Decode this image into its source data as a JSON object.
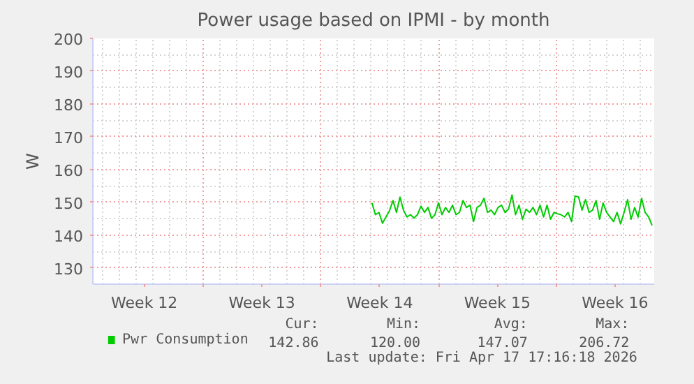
{
  "chart_data": {
    "type": "line",
    "title": "Power usage based on IPMI - by month",
    "ylabel": "W",
    "xlim": [
      "2026-03-16T10:30",
      "2026-04-18T20:00"
    ],
    "xticks": [
      {
        "value": "2026-03-19T12:00",
        "label": "Week 12"
      },
      {
        "value": "2026-03-23",
        "label": null
      },
      {
        "value": "2026-03-26T12:00",
        "label": "Week 13"
      },
      {
        "value": "2026-03-30",
        "label": null
      },
      {
        "value": "2026-04-02T12:00",
        "label": "Week 14"
      },
      {
        "value": "2026-04-06",
        "label": null
      },
      {
        "value": "2026-04-09T12:00",
        "label": "Week 15"
      },
      {
        "value": "2026-04-13",
        "label": null
      },
      {
        "value": "2026-04-16T12:00",
        "label": "Week 16"
      }
    ],
    "ylim": [
      125,
      200
    ],
    "yticks": [
      130,
      140,
      150,
      160,
      170,
      180,
      190,
      200
    ],
    "grid": true,
    "legend": "bottom",
    "x": [
      "2026-04-02T01:00",
      "2026-04-02T06:00",
      "2026-04-02T11:00",
      "2026-04-02T16:00",
      "2026-04-02T21:00",
      "2026-04-03T02:00",
      "2026-04-03T07:00",
      "2026-04-03T12:00",
      "2026-04-03T17:00",
      "2026-04-03T22:00",
      "2026-04-04T03:00",
      "2026-04-04T08:00",
      "2026-04-04T13:00",
      "2026-04-04T18:00",
      "2026-04-04T23:00",
      "2026-04-05T04:00",
      "2026-04-05T09:00",
      "2026-04-05T14:00",
      "2026-04-05T19:00",
      "2026-04-06T00:00",
      "2026-04-06T05:00",
      "2026-04-06T10:00",
      "2026-04-06T15:00",
      "2026-04-06T20:00",
      "2026-04-07T01:00",
      "2026-04-07T06:00",
      "2026-04-07T11:00",
      "2026-04-07T16:00",
      "2026-04-07T21:00",
      "2026-04-08T02:00",
      "2026-04-08T07:00",
      "2026-04-08T12:00",
      "2026-04-08T17:00",
      "2026-04-08T22:00",
      "2026-04-09T03:00",
      "2026-04-09T08:00",
      "2026-04-09T13:00",
      "2026-04-09T18:00",
      "2026-04-09T23:00",
      "2026-04-10T04:00",
      "2026-04-10T09:00",
      "2026-04-10T14:00",
      "2026-04-10T19:00",
      "2026-04-11T00:00",
      "2026-04-11T05:00",
      "2026-04-11T10:00",
      "2026-04-11T15:00",
      "2026-04-11T20:00",
      "2026-04-12T01:00",
      "2026-04-12T06:00",
      "2026-04-12T11:00",
      "2026-04-12T16:00",
      "2026-04-12T21:00",
      "2026-04-13T02:00",
      "2026-04-13T07:00",
      "2026-04-13T12:00",
      "2026-04-13T17:00",
      "2026-04-13T22:00",
      "2026-04-14T03:00",
      "2026-04-14T08:00",
      "2026-04-14T13:00",
      "2026-04-14T18:00",
      "2026-04-14T23:00",
      "2026-04-15T04:00",
      "2026-04-15T09:00",
      "2026-04-15T14:00",
      "2026-04-15T19:00",
      "2026-04-16T00:00",
      "2026-04-16T05:00",
      "2026-04-16T10:00",
      "2026-04-16T15:00",
      "2026-04-16T20:00",
      "2026-04-17T01:00",
      "2026-04-17T06:00",
      "2026-04-17T11:00",
      "2026-04-17T16:00",
      "2026-04-17T21:00",
      "2026-04-18T02:00",
      "2026-04-18T07:00",
      "2026-04-18T12:00",
      "2026-04-18T17:00"
    ],
    "series": [
      {
        "name": "Pwr Consumption",
        "color": "#00cc00",
        "values": [
          149.8,
          146.2,
          146.9,
          143.6,
          145.5,
          147.4,
          150.5,
          146.9,
          151.6,
          147.6,
          145.5,
          146.2,
          145.2,
          146.2,
          148.8,
          146.9,
          148.4,
          145.1,
          146.2,
          149.8,
          146.2,
          148.4,
          146.9,
          149.1,
          146.2,
          146.9,
          150.5,
          148.4,
          149.1,
          144.1,
          148.4,
          149.1,
          151.2,
          146.9,
          147.6,
          146.2,
          148.4,
          149.1,
          146.9,
          147.9,
          152.2,
          146.2,
          149.1,
          144.8,
          147.9,
          146.9,
          148.4,
          146.2,
          149.1,
          145.5,
          149.1,
          144.8,
          146.9,
          146.5,
          146.2,
          145.5,
          146.9,
          144.1,
          151.9,
          151.6,
          147.6,
          150.8,
          146.9,
          147.6,
          150.5,
          144.8,
          149.8,
          146.9,
          145.5,
          144.1,
          146.9,
          143.4,
          146.9,
          150.8,
          144.8,
          148.4,
          145.5,
          151.2,
          146.9,
          145.5,
          142.9
        ]
      }
    ],
    "annotations": [
      "Cur:",
      "Min:",
      "Avg:",
      "Max:",
      "142.86",
      "120.00",
      "147.07",
      "206.72",
      "Last update: Fri Apr 17 17:16:18 2026"
    ]
  }
}
